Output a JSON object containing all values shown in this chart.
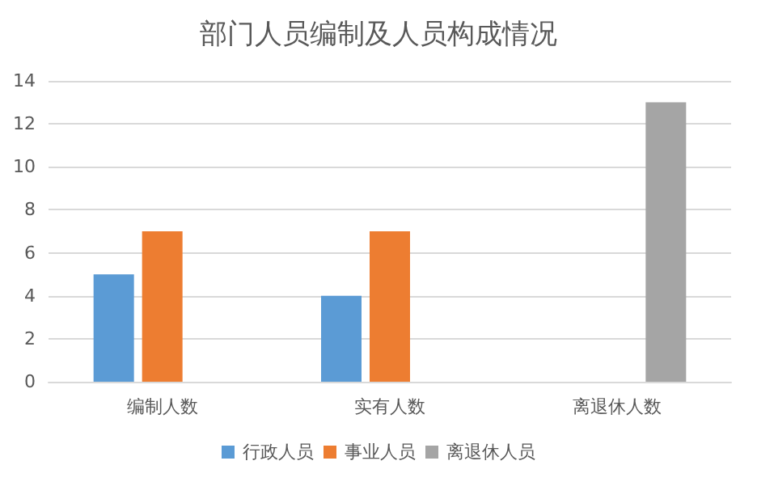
{
  "chart_data": {
    "type": "bar",
    "title": "部门人员编制及人员构成情况",
    "categories": [
      "编制人数",
      "实有人数",
      "离退休人数"
    ],
    "series": [
      {
        "name": "行政人员",
        "color": "#5b9bd5",
        "values": [
          5,
          4,
          null
        ]
      },
      {
        "name": "事业人员",
        "color": "#ed7d31",
        "values": [
          7,
          7,
          null
        ]
      },
      {
        "name": "离退休人员",
        "color": "#a5a5a5",
        "values": [
          null,
          null,
          13
        ]
      }
    ],
    "ylim": [
      0,
      14
    ],
    "yticks": [
      0,
      2,
      4,
      6,
      8,
      10,
      12,
      14
    ],
    "grid": "y",
    "legend": "bottom"
  }
}
